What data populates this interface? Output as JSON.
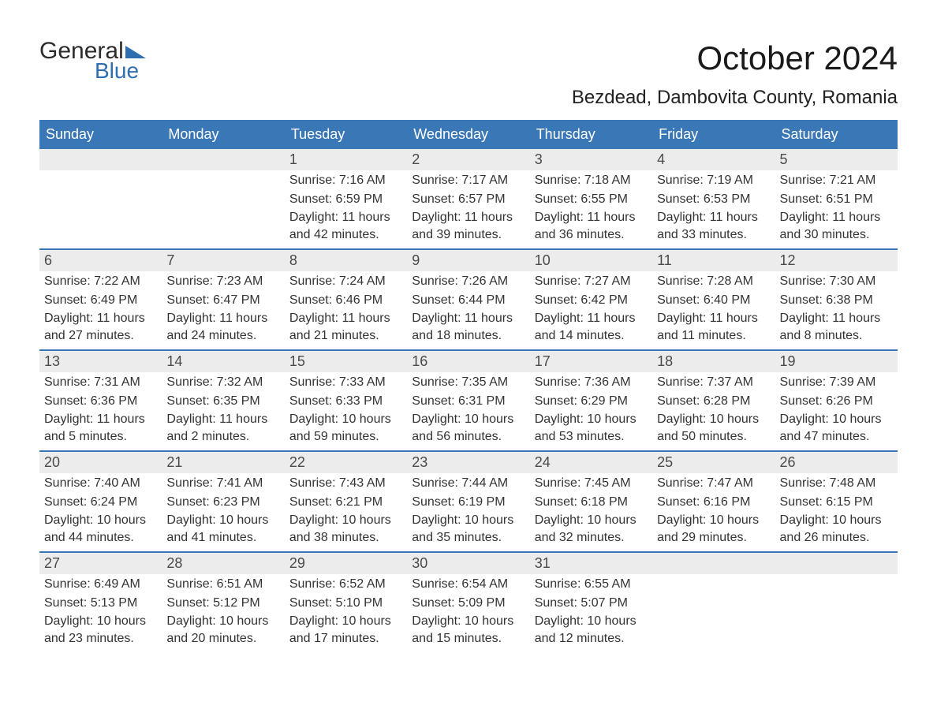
{
  "colors": {
    "header_bg": "#3a77b6",
    "header_text": "#ffffff",
    "week_border": "#3a77b6",
    "daynum_bg": "#ececec",
    "body_text": "#333333",
    "title_text": "#1a1a1a",
    "logo_dark": "#2b2b2b",
    "logo_blue": "#2f6fb0",
    "background": "#ffffff"
  },
  "typography": {
    "title_fontsize": 42,
    "subtitle_fontsize": 24,
    "weekday_fontsize": 18,
    "daynum_fontsize": 18,
    "daytext_fontsize": 16,
    "logo_fontsize": 30
  },
  "logo": {
    "line1": "General",
    "line2": "Blue"
  },
  "title": "October 2024",
  "subtitle": "Bezdead, Dambovita County, Romania",
  "weekdays": [
    "Sunday",
    "Monday",
    "Tuesday",
    "Wednesday",
    "Thursday",
    "Friday",
    "Saturday"
  ],
  "weeks": [
    [
      {
        "day": "",
        "sunrise": "",
        "sunset": "",
        "daylight": ""
      },
      {
        "day": "",
        "sunrise": "",
        "sunset": "",
        "daylight": ""
      },
      {
        "day": "1",
        "sunrise": "Sunrise: 7:16 AM",
        "sunset": "Sunset: 6:59 PM",
        "daylight": "Daylight: 11 hours and 42 minutes."
      },
      {
        "day": "2",
        "sunrise": "Sunrise: 7:17 AM",
        "sunset": "Sunset: 6:57 PM",
        "daylight": "Daylight: 11 hours and 39 minutes."
      },
      {
        "day": "3",
        "sunrise": "Sunrise: 7:18 AM",
        "sunset": "Sunset: 6:55 PM",
        "daylight": "Daylight: 11 hours and 36 minutes."
      },
      {
        "day": "4",
        "sunrise": "Sunrise: 7:19 AM",
        "sunset": "Sunset: 6:53 PM",
        "daylight": "Daylight: 11 hours and 33 minutes."
      },
      {
        "day": "5",
        "sunrise": "Sunrise: 7:21 AM",
        "sunset": "Sunset: 6:51 PM",
        "daylight": "Daylight: 11 hours and 30 minutes."
      }
    ],
    [
      {
        "day": "6",
        "sunrise": "Sunrise: 7:22 AM",
        "sunset": "Sunset: 6:49 PM",
        "daylight": "Daylight: 11 hours and 27 minutes."
      },
      {
        "day": "7",
        "sunrise": "Sunrise: 7:23 AM",
        "sunset": "Sunset: 6:47 PM",
        "daylight": "Daylight: 11 hours and 24 minutes."
      },
      {
        "day": "8",
        "sunrise": "Sunrise: 7:24 AM",
        "sunset": "Sunset: 6:46 PM",
        "daylight": "Daylight: 11 hours and 21 minutes."
      },
      {
        "day": "9",
        "sunrise": "Sunrise: 7:26 AM",
        "sunset": "Sunset: 6:44 PM",
        "daylight": "Daylight: 11 hours and 18 minutes."
      },
      {
        "day": "10",
        "sunrise": "Sunrise: 7:27 AM",
        "sunset": "Sunset: 6:42 PM",
        "daylight": "Daylight: 11 hours and 14 minutes."
      },
      {
        "day": "11",
        "sunrise": "Sunrise: 7:28 AM",
        "sunset": "Sunset: 6:40 PM",
        "daylight": "Daylight: 11 hours and 11 minutes."
      },
      {
        "day": "12",
        "sunrise": "Sunrise: 7:30 AM",
        "sunset": "Sunset: 6:38 PM",
        "daylight": "Daylight: 11 hours and 8 minutes."
      }
    ],
    [
      {
        "day": "13",
        "sunrise": "Sunrise: 7:31 AM",
        "sunset": "Sunset: 6:36 PM",
        "daylight": "Daylight: 11 hours and 5 minutes."
      },
      {
        "day": "14",
        "sunrise": "Sunrise: 7:32 AM",
        "sunset": "Sunset: 6:35 PM",
        "daylight": "Daylight: 11 hours and 2 minutes."
      },
      {
        "day": "15",
        "sunrise": "Sunrise: 7:33 AM",
        "sunset": "Sunset: 6:33 PM",
        "daylight": "Daylight: 10 hours and 59 minutes."
      },
      {
        "day": "16",
        "sunrise": "Sunrise: 7:35 AM",
        "sunset": "Sunset: 6:31 PM",
        "daylight": "Daylight: 10 hours and 56 minutes."
      },
      {
        "day": "17",
        "sunrise": "Sunrise: 7:36 AM",
        "sunset": "Sunset: 6:29 PM",
        "daylight": "Daylight: 10 hours and 53 minutes."
      },
      {
        "day": "18",
        "sunrise": "Sunrise: 7:37 AM",
        "sunset": "Sunset: 6:28 PM",
        "daylight": "Daylight: 10 hours and 50 minutes."
      },
      {
        "day": "19",
        "sunrise": "Sunrise: 7:39 AM",
        "sunset": "Sunset: 6:26 PM",
        "daylight": "Daylight: 10 hours and 47 minutes."
      }
    ],
    [
      {
        "day": "20",
        "sunrise": "Sunrise: 7:40 AM",
        "sunset": "Sunset: 6:24 PM",
        "daylight": "Daylight: 10 hours and 44 minutes."
      },
      {
        "day": "21",
        "sunrise": "Sunrise: 7:41 AM",
        "sunset": "Sunset: 6:23 PM",
        "daylight": "Daylight: 10 hours and 41 minutes."
      },
      {
        "day": "22",
        "sunrise": "Sunrise: 7:43 AM",
        "sunset": "Sunset: 6:21 PM",
        "daylight": "Daylight: 10 hours and 38 minutes."
      },
      {
        "day": "23",
        "sunrise": "Sunrise: 7:44 AM",
        "sunset": "Sunset: 6:19 PM",
        "daylight": "Daylight: 10 hours and 35 minutes."
      },
      {
        "day": "24",
        "sunrise": "Sunrise: 7:45 AM",
        "sunset": "Sunset: 6:18 PM",
        "daylight": "Daylight: 10 hours and 32 minutes."
      },
      {
        "day": "25",
        "sunrise": "Sunrise: 7:47 AM",
        "sunset": "Sunset: 6:16 PM",
        "daylight": "Daylight: 10 hours and 29 minutes."
      },
      {
        "day": "26",
        "sunrise": "Sunrise: 7:48 AM",
        "sunset": "Sunset: 6:15 PM",
        "daylight": "Daylight: 10 hours and 26 minutes."
      }
    ],
    [
      {
        "day": "27",
        "sunrise": "Sunrise: 6:49 AM",
        "sunset": "Sunset: 5:13 PM",
        "daylight": "Daylight: 10 hours and 23 minutes."
      },
      {
        "day": "28",
        "sunrise": "Sunrise: 6:51 AM",
        "sunset": "Sunset: 5:12 PM",
        "daylight": "Daylight: 10 hours and 20 minutes."
      },
      {
        "day": "29",
        "sunrise": "Sunrise: 6:52 AM",
        "sunset": "Sunset: 5:10 PM",
        "daylight": "Daylight: 10 hours and 17 minutes."
      },
      {
        "day": "30",
        "sunrise": "Sunrise: 6:54 AM",
        "sunset": "Sunset: 5:09 PM",
        "daylight": "Daylight: 10 hours and 15 minutes."
      },
      {
        "day": "31",
        "sunrise": "Sunrise: 6:55 AM",
        "sunset": "Sunset: 5:07 PM",
        "daylight": "Daylight: 10 hours and 12 minutes."
      },
      {
        "day": "",
        "sunrise": "",
        "sunset": "",
        "daylight": ""
      },
      {
        "day": "",
        "sunrise": "",
        "sunset": "",
        "daylight": ""
      }
    ]
  ]
}
